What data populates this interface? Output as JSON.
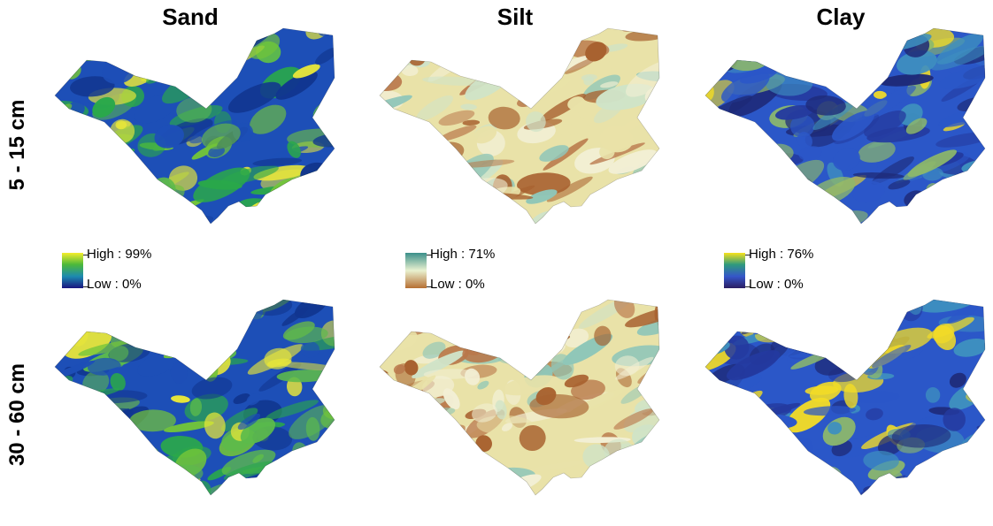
{
  "columns": [
    {
      "key": "sand",
      "title": "Sand"
    },
    {
      "key": "silt",
      "title": "Silt"
    },
    {
      "key": "clay",
      "title": "Clay"
    }
  ],
  "rows": [
    {
      "key": "d1",
      "label": "5 - 15 cm"
    },
    {
      "key": "d2",
      "label": "30 - 60 cm"
    }
  ],
  "legends": {
    "sand": {
      "high": "High : 99%",
      "low": "Low : 0%",
      "colors": [
        "#f5ee2b",
        "#4cb83a",
        "#1c8ab0",
        "#1a1580"
      ]
    },
    "silt": {
      "high": "High : 71%",
      "low": "Low : 0%",
      "colors": [
        "#3b8f8a",
        "#e9f1d0",
        "#b66f32"
      ]
    },
    "clay": {
      "high": "High : 76%",
      "low": "Low : 0%",
      "colors": [
        "#f7e21c",
        "#2e9a7d",
        "#3556c9",
        "#2b1d62"
      ]
    }
  },
  "palettes": {
    "sand": [
      "#1d4fb7",
      "#2aa84a",
      "#72c43a",
      "#e7e63a",
      "#11368f",
      "#5dbb4b"
    ],
    "silt": [
      "#e9e2a8",
      "#b9774a",
      "#8fc6b8",
      "#f2efd4",
      "#a86230",
      "#cfe3c8"
    ],
    "clay": [
      "#2b57c8",
      "#f2dc27",
      "#243a9f",
      "#3e8fbf",
      "#1e2a78",
      "#8db86b"
    ]
  }
}
